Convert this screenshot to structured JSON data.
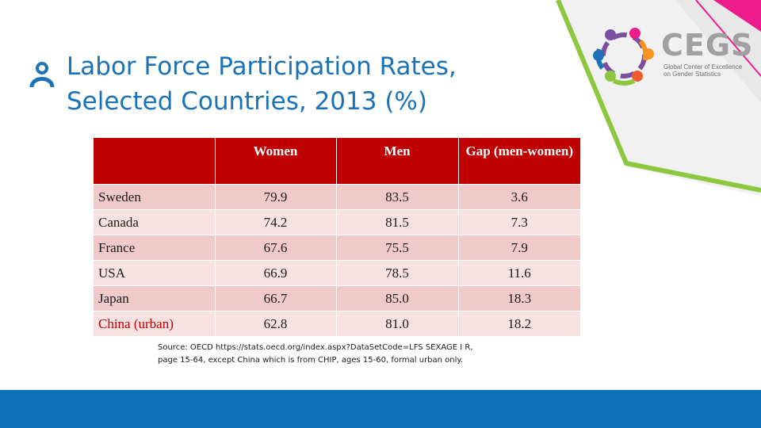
{
  "slide": {
    "title_lines": [
      "Labor Force Participation Rates,",
      "Selected Countries, 2013 (%)"
    ],
    "colors": {
      "title": "#1b72b7",
      "header": "#c00000",
      "row_odd": "#f0c9c9",
      "row_even": "#f7e1e1",
      "footer": "#0f73ba",
      "accent_green": "#8dc63f"
    }
  },
  "logo": {
    "word": "CEGS",
    "subtitle_lines": [
      "Global Center of Excellence",
      "on Gender Statistics"
    ]
  },
  "table": {
    "headers": [
      "",
      "Women",
      "Men",
      "Gap (men-women)"
    ],
    "rows": [
      {
        "country": "Sweden",
        "women": "79.9",
        "men": "83.5",
        "gap": "3.6"
      },
      {
        "country": "Canada",
        "women": "74.2",
        "men": "81.5",
        "gap": "7.3"
      },
      {
        "country": "France",
        "women": "67.6",
        "men": "75.5",
        "gap": "7.9"
      },
      {
        "country": "USA",
        "women": "66.9",
        "men": "78.5",
        "gap": "11.6"
      },
      {
        "country": "Japan",
        "women": "66.7",
        "men": "85.0",
        "gap": "18.3"
      },
      {
        "country": "China (urban)",
        "women": "62.8",
        "men": "81.0",
        "gap": "18.2"
      }
    ]
  },
  "source_lines": [
    "Source: OECD https://stats.oecd.org/index.aspx?DataSetCode=LFS SEXAGE I R,",
    "page 15-64, except China which is from CHIP, ages 15-60, formal urban only."
  ]
}
